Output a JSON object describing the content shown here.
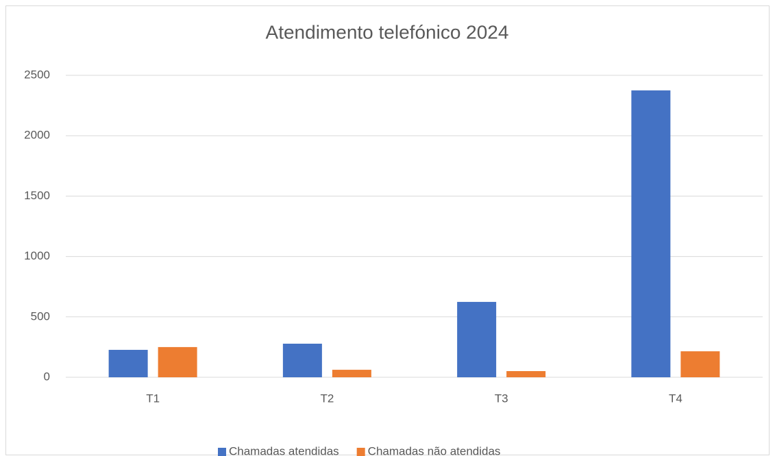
{
  "chart_data": {
    "type": "bar",
    "title": "Atendimento telefónico 2024",
    "categories": [
      "T1",
      "T2",
      "T3",
      "T4"
    ],
    "series": [
      {
        "name": "Chamadas atendidas",
        "color": "#4472c4",
        "values": [
          227,
          278,
          624,
          2375
        ]
      },
      {
        "name": "Chamadas não atendidas",
        "color": "#ed7d31",
        "values": [
          250,
          62,
          51,
          215
        ]
      }
    ],
    "ylim": [
      0,
      2500
    ],
    "yticks": [
      0,
      500,
      1000,
      1500,
      2000,
      2500
    ],
    "grid": true,
    "legend": "bottom"
  }
}
